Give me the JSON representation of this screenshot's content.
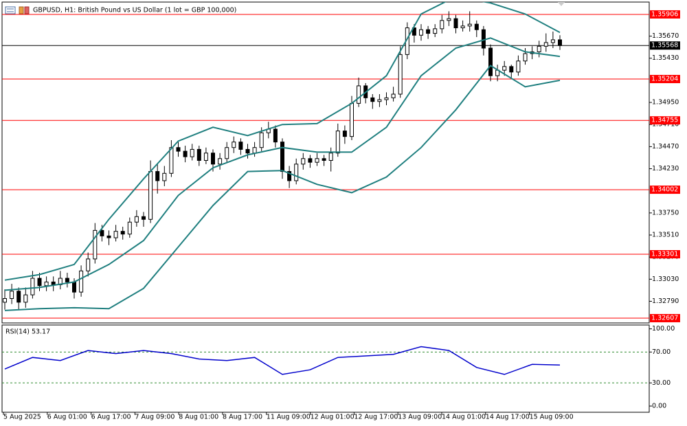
{
  "chart_data": [
    {
      "type": "candlestick",
      "title": "GBPUSD, H1:  British Pound vs US Dollar (1 lot = GBP 100,000)",
      "candle_color": "#000000",
      "ohlc": [
        [
          1.3278,
          1.3292,
          1.327,
          1.3282
        ],
        [
          1.3282,
          1.3298,
          1.3276,
          1.329
        ],
        [
          1.329,
          1.3294,
          1.327,
          1.3278
        ],
        [
          1.3278,
          1.3294,
          1.3272,
          1.3286
        ],
        [
          1.3286,
          1.3312,
          1.3282,
          1.3304
        ],
        [
          1.3304,
          1.331,
          1.329,
          1.3296
        ],
        [
          1.3296,
          1.3306,
          1.329,
          1.33
        ],
        [
          1.33,
          1.3306,
          1.329,
          1.3297
        ],
        [
          1.3297,
          1.3312,
          1.3292,
          1.3304
        ],
        [
          1.3304,
          1.331,
          1.3294,
          1.33
        ],
        [
          1.33,
          1.3304,
          1.3282,
          1.3289
        ],
        [
          1.3289,
          1.3318,
          1.3284,
          1.3312
        ],
        [
          1.3312,
          1.3332,
          1.3306,
          1.3325
        ],
        [
          1.3325,
          1.3364,
          1.332,
          1.3356
        ],
        [
          1.3356,
          1.3362,
          1.3344,
          1.335
        ],
        [
          1.335,
          1.3356,
          1.334,
          1.3348
        ],
        [
          1.3348,
          1.3362,
          1.3344,
          1.3355
        ],
        [
          1.3355,
          1.336,
          1.3346,
          1.3352
        ],
        [
          1.3352,
          1.337,
          1.3348,
          1.3365
        ],
        [
          1.3365,
          1.3378,
          1.336,
          1.3371
        ],
        [
          1.3371,
          1.3376,
          1.336,
          1.3368
        ],
        [
          1.3368,
          1.3432,
          1.3364,
          1.342
        ],
        [
          1.342,
          1.3428,
          1.3396,
          1.341
        ],
        [
          1.341,
          1.3426,
          1.3404,
          1.3418
        ],
        [
          1.3418,
          1.3454,
          1.3414,
          1.3446
        ],
        [
          1.3446,
          1.3452,
          1.3436,
          1.3442
        ],
        [
          1.3442,
          1.3448,
          1.343,
          1.3436
        ],
        [
          1.3436,
          1.345,
          1.3432,
          1.3444
        ],
        [
          1.3444,
          1.3448,
          1.3426,
          1.3432
        ],
        [
          1.3432,
          1.3446,
          1.3428,
          1.344
        ],
        [
          1.344,
          1.3444,
          1.342,
          1.3428
        ],
        [
          1.3428,
          1.344,
          1.3422,
          1.3434
        ],
        [
          1.3434,
          1.3452,
          1.343,
          1.3446
        ],
        [
          1.3446,
          1.3458,
          1.344,
          1.3452
        ],
        [
          1.3452,
          1.3456,
          1.3438,
          1.3444
        ],
        [
          1.3444,
          1.345,
          1.3434,
          1.344
        ],
        [
          1.344,
          1.3452,
          1.3436,
          1.3446
        ],
        [
          1.3446,
          1.3468,
          1.3442,
          1.3462
        ],
        [
          1.3462,
          1.3474,
          1.3456,
          1.3466
        ],
        [
          1.3466,
          1.347,
          1.3446,
          1.3452
        ],
        [
          1.3452,
          1.3456,
          1.3412,
          1.342
        ],
        [
          1.342,
          1.3426,
          1.3402,
          1.341
        ],
        [
          1.341,
          1.3434,
          1.3406,
          1.3428
        ],
        [
          1.3428,
          1.344,
          1.3422,
          1.3434
        ],
        [
          1.3434,
          1.3438,
          1.3424,
          1.343
        ],
        [
          1.343,
          1.344,
          1.3426,
          1.3434
        ],
        [
          1.3434,
          1.3438,
          1.3426,
          1.3432
        ],
        [
          1.3432,
          1.3446,
          1.342,
          1.344
        ],
        [
          1.344,
          1.3472,
          1.3436,
          1.3464
        ],
        [
          1.3464,
          1.347,
          1.345,
          1.3458
        ],
        [
          1.3458,
          1.3502,
          1.3454,
          1.3494
        ],
        [
          1.3494,
          1.3522,
          1.349,
          1.3513
        ],
        [
          1.3513,
          1.3516,
          1.3494,
          1.35
        ],
        [
          1.35,
          1.3504,
          1.3488,
          1.3496
        ],
        [
          1.3496,
          1.3504,
          1.349,
          1.3498
        ],
        [
          1.3498,
          1.3506,
          1.3492,
          1.35
        ],
        [
          1.35,
          1.3512,
          1.3496,
          1.3504
        ],
        [
          1.3504,
          1.3556,
          1.35,
          1.3547
        ],
        [
          1.3547,
          1.3582,
          1.3542,
          1.3576
        ],
        [
          1.3576,
          1.358,
          1.356,
          1.3568
        ],
        [
          1.3568,
          1.358,
          1.3562,
          1.3574
        ],
        [
          1.3574,
          1.3578,
          1.3564,
          1.357
        ],
        [
          1.357,
          1.358,
          1.3566,
          1.3575
        ],
        [
          1.3575,
          1.359,
          1.357,
          1.3584
        ],
        [
          1.3584,
          1.3594,
          1.3578,
          1.3586
        ],
        [
          1.3586,
          1.359,
          1.357,
          1.3576
        ],
        [
          1.3576,
          1.3584,
          1.3572,
          1.3578
        ],
        [
          1.3578,
          1.3594,
          1.3572,
          1.358
        ],
        [
          1.358,
          1.3584,
          1.3566,
          1.3574
        ],
        [
          1.3574,
          1.3578,
          1.3546,
          1.3554
        ],
        [
          1.3554,
          1.3558,
          1.3518,
          1.3524
        ],
        [
          1.3524,
          1.3536,
          1.3518,
          1.353
        ],
        [
          1.353,
          1.354,
          1.3524,
          1.3534
        ],
        [
          1.3534,
          1.3536,
          1.3522,
          1.3528
        ],
        [
          1.3528,
          1.3546,
          1.3524,
          1.354
        ],
        [
          1.354,
          1.3554,
          1.3536,
          1.3548
        ],
        [
          1.3548,
          1.3556,
          1.3542,
          1.355
        ],
        [
          1.355,
          1.3562,
          1.3544,
          1.3556
        ],
        [
          1.3556,
          1.357,
          1.355,
          1.356
        ],
        [
          1.356,
          1.3572,
          1.3554,
          1.3563
        ],
        [
          1.3563,
          1.3568,
          1.3552,
          1.35568
        ]
      ],
      "series": [
        {
          "color": "#1f7f7f",
          "x": [
            0,
            5,
            10,
            15,
            20,
            25,
            30,
            35,
            40,
            45,
            50,
            55,
            60,
            65,
            70,
            75,
            80
          ],
          "values": [
            1.3302,
            1.3308,
            1.3319,
            1.3368,
            1.3412,
            1.3453,
            1.3468,
            1.3459,
            1.3471,
            1.3472,
            1.3494,
            1.3524,
            1.3591,
            1.361,
            1.3603,
            1.3591,
            1.3571
          ]
        },
        {
          "color": "#1f7f7f",
          "x": [
            0,
            5,
            10,
            15,
            20,
            25,
            30,
            35,
            40,
            45,
            50,
            55,
            60,
            65,
            70,
            75,
            80
          ],
          "values": [
            1.3291,
            1.3294,
            1.33,
            1.3319,
            1.3345,
            1.3394,
            1.3424,
            1.3438,
            1.3446,
            1.3441,
            1.3441,
            1.3468,
            1.3524,
            1.3554,
            1.3565,
            1.355,
            1.3545
          ]
        },
        {
          "color": "#1f7f7f",
          "x": [
            0,
            5,
            10,
            15,
            20,
            25,
            30,
            35,
            40,
            45,
            50,
            55,
            60,
            65,
            70,
            75,
            80
          ],
          "values": [
            1.3269,
            1.3271,
            1.3272,
            1.3271,
            1.3293,
            1.3338,
            1.3383,
            1.342,
            1.3421,
            1.3406,
            1.3397,
            1.3414,
            1.3446,
            1.3487,
            1.3535,
            1.3512,
            1.3519
          ]
        }
      ],
      "levels": [
        1.35906,
        1.35204,
        1.34755,
        1.34002,
        1.33301,
        1.32607
      ],
      "level_color": "#ff0000",
      "current_price": 1.35568,
      "ylim": [
        1.32555,
        1.3604
      ],
      "yticks": [
        {
          "value": 1.3567,
          "label": "1.35670"
        },
        {
          "value": 1.3543,
          "label": "1.35430"
        },
        {
          "value": 1.3495,
          "label": "1.34950"
        },
        {
          "value": 1.3471,
          "label": "1.34710"
        },
        {
          "value": 1.3447,
          "label": "1.34470"
        },
        {
          "value": 1.3423,
          "label": "1.34230"
        },
        {
          "value": 1.3375,
          "label": "1.33750"
        },
        {
          "value": 1.3351,
          "label": "1.33510"
        },
        {
          "value": 1.3327,
          "label": "1.33270"
        },
        {
          "value": 1.3303,
          "label": "1.33030"
        },
        {
          "value": 1.3279,
          "label": "1.32790"
        }
      ],
      "x_labels": [
        "5 Aug 2025",
        "6 Aug 01:00",
        "6 Aug 17:00",
        "7 Aug 09:00",
        "8 Aug 01:00",
        "8 Aug 17:00",
        "11 Aug 09:00",
        "12 Aug 01:00",
        "12 Aug 17:00",
        "13 Aug 09:00",
        "14 Aug 01:00",
        "14 Aug 17:00",
        "15 Aug 09:00"
      ]
    },
    {
      "type": "line",
      "title": "RSI(14) 53.17",
      "series": [
        {
          "color": "#0000cc",
          "x": [
            0,
            4,
            8,
            12,
            16,
            20,
            24,
            28,
            32,
            36,
            40,
            44,
            48,
            52,
            56,
            60,
            64,
            68,
            72,
            76,
            80
          ],
          "values": [
            48,
            63,
            59,
            72,
            68,
            72,
            68,
            61,
            59,
            63,
            41,
            47,
            63,
            65,
            67,
            77,
            72,
            50,
            41,
            54,
            53.17
          ]
        }
      ],
      "levels": [
        70,
        30
      ],
      "level_color": "#2e8b2e",
      "ylim": [
        -8,
        105
      ],
      "yticks": [
        {
          "value": 100,
          "label": "100.00"
        },
        {
          "value": 70,
          "label": "70.00"
        },
        {
          "value": 30,
          "label": "30.00"
        },
        {
          "value": 0,
          "label": "0.00"
        }
      ]
    }
  ]
}
